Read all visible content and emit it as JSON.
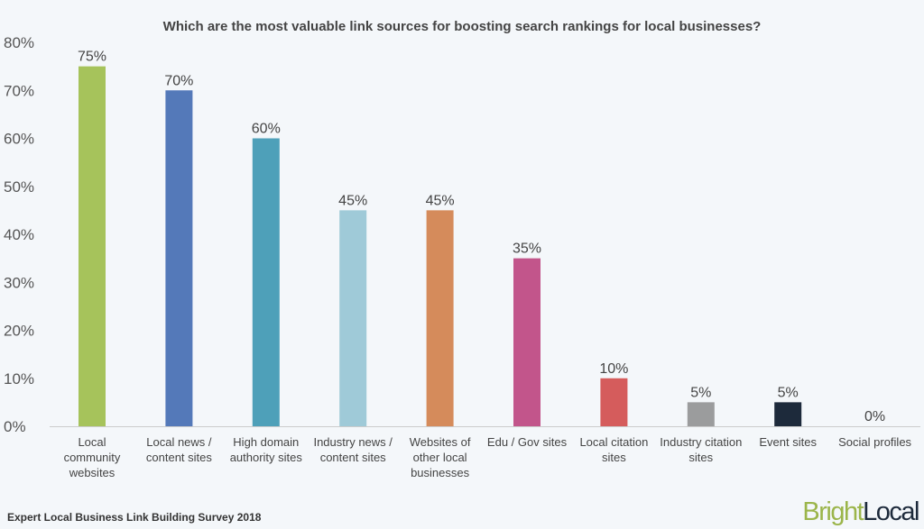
{
  "chart_data": {
    "type": "bar",
    "title": "Which are the most valuable link sources for boosting search rankings for local businesses?",
    "categories": [
      [
        "Local",
        "community",
        "websites"
      ],
      [
        "Local news /",
        "content sites"
      ],
      [
        "High domain",
        "authority sites"
      ],
      [
        "Industry news /",
        "content sites"
      ],
      [
        "Websites of",
        "other local",
        "businesses"
      ],
      [
        "Edu / Gov sites"
      ],
      [
        "Local citation",
        "sites"
      ],
      [
        "Industry citation",
        "sites"
      ],
      [
        "Event sites"
      ],
      [
        "Social profiles"
      ]
    ],
    "values": [
      75,
      70,
      60,
      45,
      45,
      35,
      10,
      5,
      5,
      0
    ],
    "data_labels": [
      "75%",
      "70%",
      "60%",
      "45%",
      "45%",
      "35%",
      "10%",
      "5%",
      "5%",
      "0%"
    ],
    "colors": [
      "#a6c35b",
      "#5479b9",
      "#4ea0b9",
      "#9fcad8",
      "#d58b5b",
      "#c2558b",
      "#d55c5c",
      "#9b9c9d",
      "#1d2a3b",
      "#cccccc"
    ],
    "ylim": [
      0,
      80
    ],
    "yticks": [
      0,
      10,
      20,
      30,
      40,
      50,
      60,
      70,
      80
    ],
    "ytick_labels": [
      "0%",
      "10%",
      "20%",
      "30%",
      "40%",
      "50%",
      "60%",
      "70%",
      "80%"
    ],
    "xlabel": "",
    "ylabel": "",
    "grid": false,
    "legend": "none"
  },
  "footer": {
    "source": "Expert Local Business Link Building Survey 2018",
    "logo_part1": "Bright",
    "logo_part2": "Local",
    "logo_colors": [
      "#9bb54a",
      "#1d2a3b"
    ]
  }
}
